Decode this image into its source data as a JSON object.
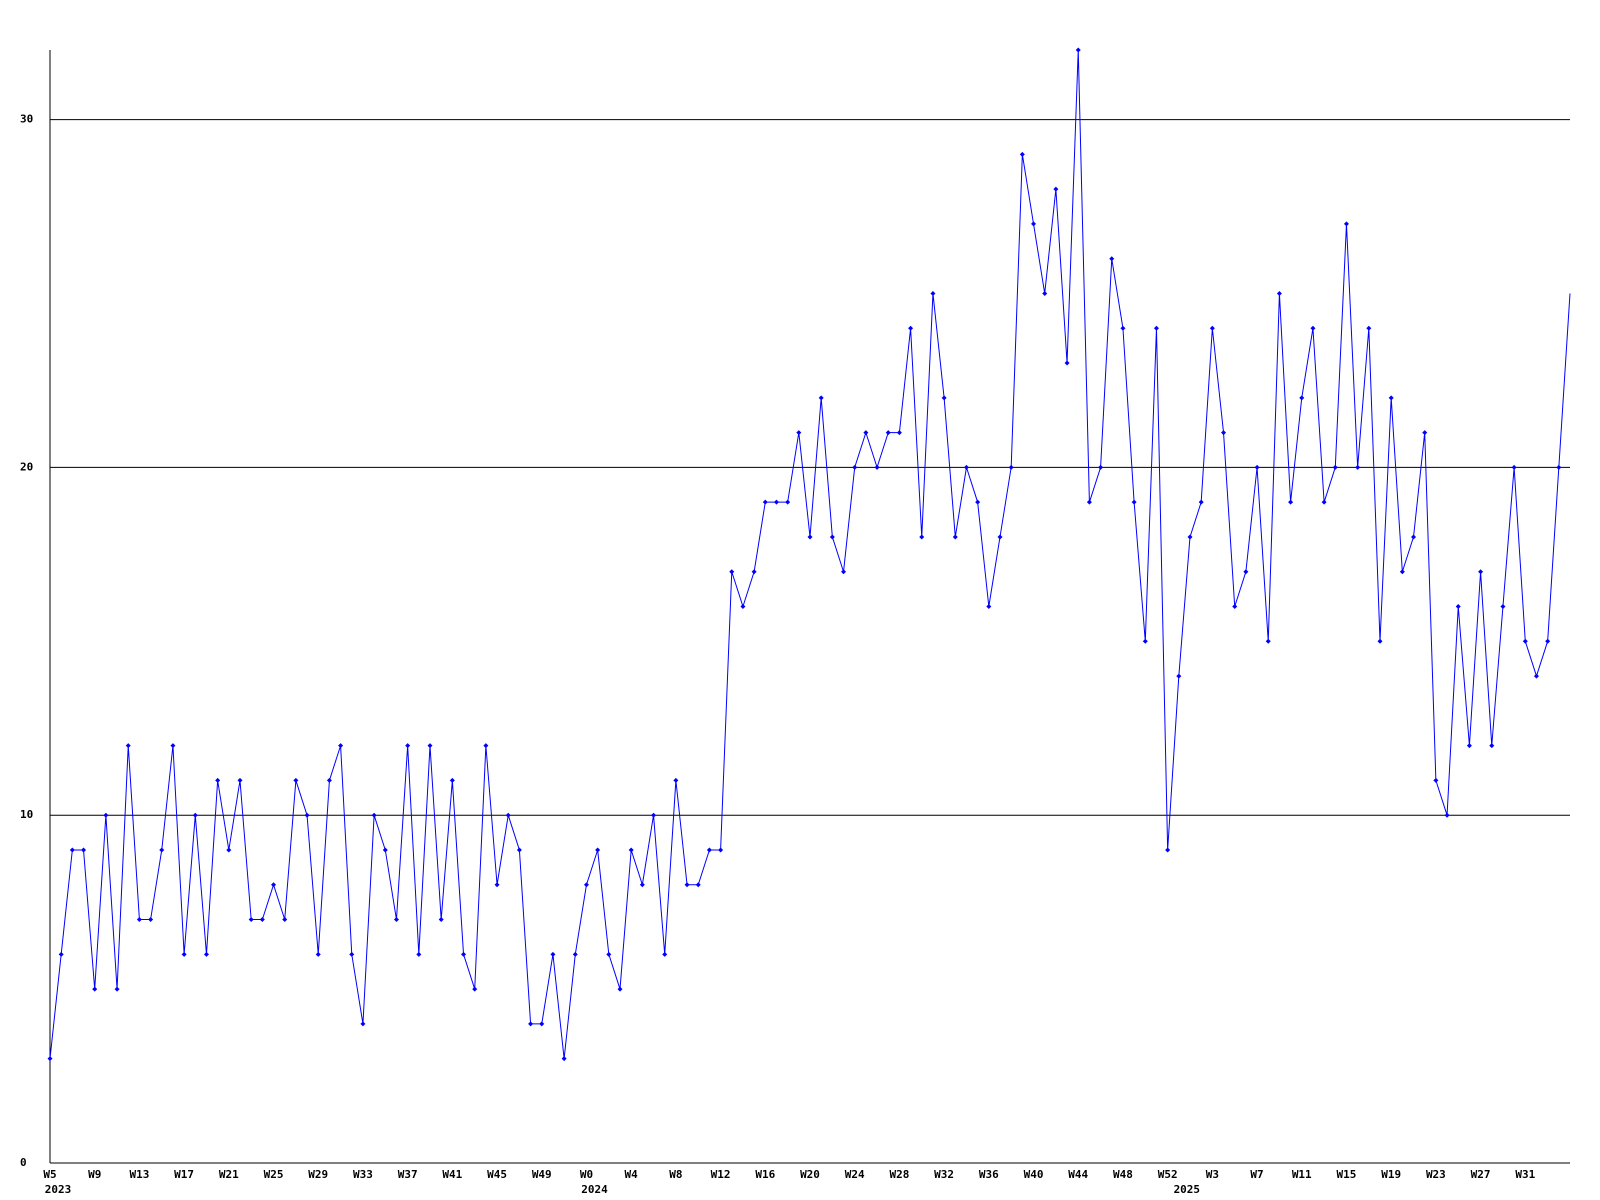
{
  "chart_data": {
    "type": "line",
    "categories": [
      "W5",
      null,
      null,
      null,
      "W9",
      null,
      null,
      null,
      "W13",
      null,
      null,
      null,
      "W17",
      null,
      null,
      null,
      "W21",
      null,
      null,
      null,
      "W25",
      null,
      null,
      null,
      "W29",
      null,
      null,
      null,
      "W33",
      null,
      null,
      null,
      "W37",
      null,
      null,
      null,
      "W41",
      null,
      null,
      null,
      "W45",
      null,
      null,
      null,
      "W49",
      null,
      null,
      null,
      "W0",
      null,
      null,
      null,
      "W4",
      null,
      null,
      null,
      "W8",
      null,
      null,
      null,
      "W12",
      null,
      null,
      null,
      "W16",
      null,
      null,
      null,
      "W20",
      null,
      null,
      null,
      "W24",
      null,
      null,
      null,
      "W28",
      null,
      null,
      null,
      "W32",
      null,
      null,
      null,
      "W36",
      null,
      null,
      null,
      "W40",
      null,
      null,
      null,
      "W44",
      null,
      null,
      null,
      "W48",
      null,
      null,
      null,
      "W52",
      null,
      null,
      null,
      "W3",
      null,
      null,
      null,
      "W7",
      null,
      null,
      null,
      "W11",
      null,
      null,
      null,
      "W15",
      null,
      null,
      null,
      "W19",
      null,
      null,
      null,
      "W23",
      null,
      null,
      null,
      "W27",
      null,
      null,
      null,
      "W31",
      null,
      null,
      null,
      null
    ],
    "year_labels": [
      "2023",
      null,
      null,
      null,
      null,
      null,
      null,
      null,
      null,
      null,
      null,
      null,
      null,
      null,
      null,
      null,
      null,
      null,
      null,
      null,
      null,
      null,
      null,
      null,
      null,
      null,
      null,
      null,
      null,
      null,
      null,
      null,
      null,
      null,
      null,
      null,
      null,
      null,
      null,
      null,
      null,
      null,
      null,
      null,
      null,
      null,
      null,
      null,
      "2024",
      null,
      null,
      null,
      null,
      null,
      null,
      null,
      null,
      null,
      null,
      null,
      null,
      null,
      null,
      null,
      null,
      null,
      null,
      null,
      null,
      null,
      null,
      null,
      null,
      null,
      null,
      null,
      null,
      null,
      null,
      null,
      null,
      null,
      null,
      null,
      null,
      null,
      null,
      null,
      null,
      null,
      null,
      null,
      null,
      null,
      null,
      null,
      null,
      null,
      null,
      null,
      null,
      "2025",
      null,
      null,
      null,
      null,
      null,
      null,
      null,
      null,
      null,
      null,
      null,
      null,
      null,
      null,
      null,
      null,
      null,
      null,
      null,
      null,
      null,
      null,
      null,
      null,
      null,
      null,
      null,
      null,
      null,
      null,
      null,
      null,
      null,
      null,
      null
    ],
    "series": [
      {
        "color": "#0000ff",
        "values": [
          3,
          6,
          9,
          9,
          5,
          10,
          5,
          12,
          7,
          7,
          9,
          12,
          6,
          10,
          6,
          11,
          9,
          11,
          7,
          7,
          8,
          7,
          11,
          10,
          6,
          11,
          12,
          6,
          4,
          10,
          9,
          7,
          12,
          6,
          12,
          7,
          11,
          6,
          5,
          12,
          8,
          10,
          9,
          4,
          4,
          6,
          3,
          6,
          8,
          9,
          6,
          5,
          9,
          8,
          10,
          6,
          11,
          8,
          8,
          9,
          9,
          17,
          16,
          17,
          19,
          19,
          19,
          21,
          18,
          22,
          18,
          17,
          20,
          21,
          20,
          21,
          21,
          24,
          18,
          25,
          22,
          18,
          20,
          19,
          16,
          18,
          20,
          29,
          27,
          25,
          28,
          23,
          32,
          19,
          20,
          26,
          24,
          19,
          15,
          24,
          9,
          14,
          18,
          19,
          24,
          21,
          16,
          17,
          20,
          15,
          25,
          19,
          22,
          24,
          19,
          20,
          27,
          20,
          24,
          15,
          22,
          17,
          18,
          21,
          11,
          10,
          16,
          12,
          17,
          12,
          16,
          20,
          15,
          14,
          15,
          20,
          25
        ]
      }
    ],
    "ylim": [
      0,
      32
    ],
    "yticks": [
      0,
      10,
      20,
      30
    ],
    "grid": true
  }
}
